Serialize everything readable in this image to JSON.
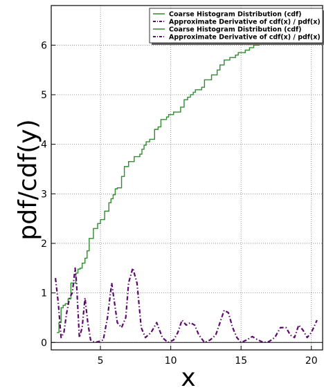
{
  "chart_data": {
    "type": "line",
    "title": "",
    "xlabel": "x",
    "ylabel": "pdf/cdf(y)",
    "xlim": [
      1.5,
      20.8
    ],
    "ylim": [
      -0.15,
      6.8
    ],
    "xticks": [
      5,
      10,
      15,
      20
    ],
    "yticks": [
      0,
      1,
      2,
      3,
      4,
      5,
      6
    ],
    "grid": true,
    "legend_position": "top-right",
    "series": [
      {
        "name": "Coarse Histogram Distribution (cdf)",
        "style": "step",
        "color": "#2e8b2e",
        "x": [
          1.9,
          2.05,
          2.2,
          2.35,
          2.5,
          2.7,
          2.9,
          3.05,
          3.25,
          3.4,
          3.55,
          3.7,
          3.9,
          4.05,
          4.2,
          4.35,
          4.5,
          4.8,
          5.0,
          5.3,
          5.6,
          5.75,
          5.9,
          6.05,
          6.2,
          6.5,
          6.7,
          7.0,
          7.4,
          7.8,
          7.95,
          8.1,
          8.25,
          8.5,
          8.85,
          9.1,
          9.3,
          9.7,
          9.85,
          10.2,
          10.7,
          10.95,
          11.2,
          11.4,
          11.6,
          11.75,
          12.2,
          12.4,
          12.9,
          13.3,
          13.5,
          13.8,
          14.2,
          14.6,
          14.8,
          15.3,
          15.6,
          15.9,
          16.3,
          16.6,
          16.8,
          17.1,
          17.5
        ],
        "y": [
          0.2,
          0.4,
          0.7,
          0.75,
          0.78,
          0.88,
          1.2,
          1.2,
          1.4,
          1.48,
          1.5,
          1.6,
          1.7,
          1.85,
          2.1,
          2.1,
          2.3,
          2.4,
          2.48,
          2.65,
          2.82,
          2.9,
          2.98,
          3.1,
          3.12,
          3.35,
          3.55,
          3.65,
          3.75,
          3.8,
          3.9,
          3.98,
          4.05,
          4.1,
          4.3,
          4.35,
          4.5,
          4.55,
          4.6,
          4.65,
          4.75,
          4.9,
          4.95,
          5.0,
          5.05,
          5.1,
          5.15,
          5.3,
          5.4,
          5.5,
          5.6,
          5.7,
          5.75,
          5.8,
          5.85,
          5.9,
          5.95,
          6.0,
          6.05,
          6.1,
          6.15,
          6.2,
          6.3
        ]
      },
      {
        "name": "Approximate Derivative of cdf(x) / pdf(x)",
        "style": "dashdot",
        "color": "#5c0a6b",
        "x": [
          1.8,
          2.0,
          2.2,
          2.4,
          2.6,
          2.8,
          3.0,
          3.2,
          3.3,
          3.5,
          3.7,
          3.9,
          4.1,
          4.3,
          4.6,
          4.9,
          5.2,
          5.5,
          5.8,
          6.0,
          6.2,
          6.5,
          6.8,
          7.0,
          7.3,
          7.6,
          7.9,
          8.2,
          8.6,
          9.0,
          9.4,
          9.8,
          10.2,
          10.5,
          10.8,
          11.1,
          11.4,
          11.7,
          12.0,
          12.4,
          12.8,
          13.2,
          13.5,
          13.8,
          14.1,
          14.4,
          14.7,
          15.0,
          15.4,
          15.8,
          16.2,
          16.6,
          17.0,
          17.4,
          17.8,
          18.2,
          18.5,
          18.8,
          19.1,
          19.4,
          19.7,
          20.0,
          20.4
        ],
        "y": [
          1.3,
          0.8,
          0.1,
          0.2,
          0.6,
          0.9,
          1.0,
          1.5,
          1.2,
          0.1,
          0.3,
          0.9,
          0.4,
          0.05,
          0.0,
          0.02,
          0.05,
          0.5,
          1.2,
          0.8,
          0.4,
          0.3,
          0.5,
          1.2,
          1.5,
          1.2,
          0.3,
          0.1,
          0.2,
          0.4,
          0.1,
          0.0,
          0.05,
          0.2,
          0.45,
          0.35,
          0.4,
          0.35,
          0.15,
          0.0,
          0.05,
          0.15,
          0.4,
          0.65,
          0.6,
          0.3,
          0.1,
          0.0,
          0.05,
          0.12,
          0.05,
          0.0,
          0.02,
          0.1,
          0.3,
          0.3,
          0.15,
          0.1,
          0.35,
          0.25,
          0.1,
          0.2,
          0.45
        ]
      }
    ],
    "legend_entries": [
      {
        "label": "Coarse Histogram Distribution (cdf)",
        "series": 0
      },
      {
        "label": "Approximate Derivative of cdf(x) / pdf(x)",
        "series": 1
      },
      {
        "label": "Coarse Histogram Distribution (cdf)",
        "series": 0
      },
      {
        "label": "Approximate Derivative of cdf(x) / pdf(x)",
        "series": 1
      }
    ]
  }
}
